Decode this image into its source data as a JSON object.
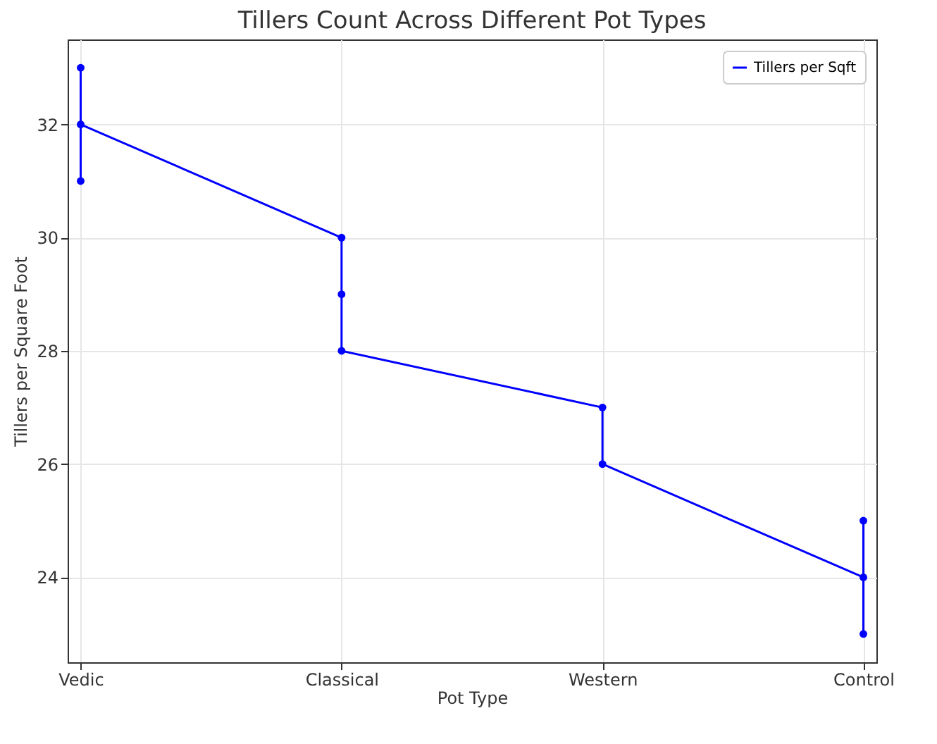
{
  "chart_data": {
    "type": "line",
    "title": "Tillers Count Across Different Pot Types",
    "xlabel": "Pot Type",
    "ylabel": "Tillers per Square Foot",
    "categories": [
      "Vedic",
      "Classical",
      "Western",
      "Control"
    ],
    "series": [
      {
        "name": "Tillers per Sqft",
        "color": "#0000ff",
        "x": [
          "Vedic",
          "Vedic",
          "Vedic",
          "Classical",
          "Classical",
          "Classical",
          "Western",
          "Western",
          "Control",
          "Control",
          "Control"
        ],
        "values": [
          33,
          31,
          32,
          30,
          29,
          28,
          27,
          26,
          24,
          25,
          23
        ]
      }
    ],
    "ylim": [
      22.5,
      33.5
    ],
    "yticks": [
      24,
      26,
      28,
      30,
      32
    ],
    "grid": true,
    "legend": "top right",
    "marker": "circle"
  }
}
